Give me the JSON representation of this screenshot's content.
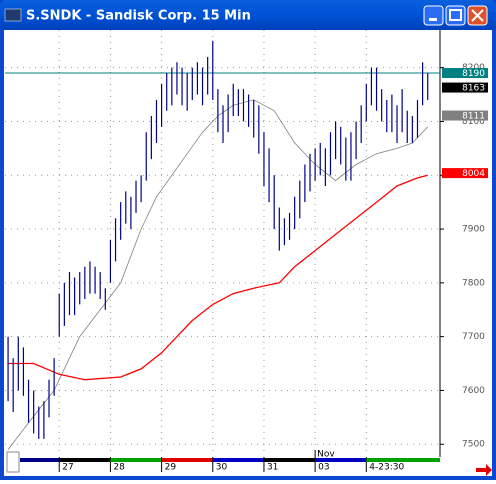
{
  "window": {
    "title": "S.SNDK - Sandisk Corp. 15 Min"
  },
  "chart_data": {
    "type": "hilo",
    "color": "#00008b",
    "x": [
      0,
      1,
      2,
      3,
      4,
      5,
      6,
      7,
      8,
      9,
      10,
      11,
      12,
      13,
      14,
      15,
      16,
      17,
      18,
      19,
      20,
      21,
      22,
      23,
      24,
      25,
      26,
      27,
      28,
      29,
      30,
      31,
      32,
      33,
      34,
      35,
      36,
      37,
      38,
      39,
      40,
      41,
      42,
      43,
      44,
      45,
      46,
      47,
      48,
      49,
      50,
      51,
      52,
      53,
      54,
      55,
      56,
      57,
      58,
      59,
      60,
      61,
      62,
      63,
      64,
      65,
      66,
      67,
      68,
      69,
      70,
      71,
      72,
      73,
      74,
      75,
      76,
      77,
      78,
      79,
      80,
      81,
      82
    ],
    "high": [
      7700,
      7660,
      7700,
      7680,
      7620,
      7600,
      7570,
      7580,
      7620,
      7660,
      7780,
      7800,
      7820,
      7810,
      7820,
      7830,
      7840,
      7830,
      7820,
      7790,
      7880,
      7920,
      7950,
      7970,
      7960,
      7990,
      8000,
      8080,
      8110,
      8140,
      8170,
      8190,
      8200,
      8210,
      8200,
      8190,
      8200,
      8210,
      8200,
      8220,
      8250,
      8160,
      8130,
      8150,
      8170,
      8160,
      8160,
      8150,
      8140,
      8130,
      8080,
      8050,
      8000,
      7940,
      7920,
      7930,
      7960,
      7990,
      8020,
      8040,
      8050,
      8060,
      8050,
      8080,
      8100,
      8090,
      8070,
      8080,
      8100,
      8130,
      8170,
      8200,
      8200,
      8160,
      8140,
      8150,
      8130,
      8160,
      8120,
      8110,
      8140,
      8210,
      8190
    ],
    "low": [
      7580,
      7560,
      7600,
      7590,
      7540,
      7520,
      7510,
      7510,
      7550,
      7590,
      7700,
      7720,
      7740,
      7740,
      7760,
      7770,
      7780,
      7780,
      7770,
      7750,
      7800,
      7840,
      7880,
      7910,
      7900,
      7930,
      7950,
      7990,
      8030,
      8060,
      8090,
      8120,
      8130,
      8150,
      8130,
      8120,
      8140,
      8150,
      8130,
      8150,
      8140,
      8080,
      8060,
      8080,
      8110,
      8110,
      8100,
      8090,
      8070,
      8040,
      7980,
      7950,
      7900,
      7860,
      7870,
      7880,
      7900,
      7920,
      7950,
      7970,
      7990,
      8000,
      7980,
      8000,
      8030,
      8020,
      7990,
      7990,
      8030,
      8060,
      8100,
      8130,
      8120,
      8100,
      8080,
      8080,
      8060,
      8080,
      8060,
      8060,
      8070,
      8130,
      8140
    ],
    "lines": [
      {
        "color": "#808080",
        "x": [
          0,
          4,
          9,
          14,
          18,
          22,
          26,
          29,
          32,
          35,
          38,
          41,
          44,
          48,
          52,
          56,
          60,
          64,
          68,
          72,
          76,
          79,
          82
        ],
        "values": [
          7490,
          7540,
          7600,
          7700,
          7750,
          7800,
          7900,
          7960,
          8000,
          8040,
          8080,
          8110,
          8130,
          8140,
          8120,
          8060,
          8020,
          7990,
          8020,
          8040,
          8050,
          8060,
          8090
        ]
      },
      {
        "color": "#ff0000",
        "x": [
          0,
          5,
          10,
          15,
          22,
          26,
          30,
          33,
          36,
          40,
          44,
          48,
          53,
          56,
          60,
          64,
          68,
          72,
          76,
          80,
          82
        ],
        "values": [
          7650,
          7650,
          7630,
          7620,
          7625,
          7640,
          7670,
          7700,
          7730,
          7760,
          7780,
          7790,
          7800,
          7830,
          7860,
          7890,
          7920,
          7950,
          7980,
          7995,
          8000
        ]
      }
    ],
    "hline": {
      "value": 8190,
      "color": "#008080"
    },
    "price_markers": [
      {
        "value": 8190,
        "color": "#008080"
      },
      {
        "value": 8163,
        "color": "#000000"
      },
      {
        "value": 8111,
        "color": "#808080"
      },
      {
        "value": 8004,
        "color": "#ff0000"
      }
    ],
    "xlim": [
      -0.6,
      84.4
    ],
    "xticks": [
      {
        "value": 10,
        "label": "27"
      },
      {
        "value": 20,
        "label": "28"
      },
      {
        "value": 30,
        "label": "29"
      },
      {
        "value": 40,
        "label": "30"
      },
      {
        "value": 50,
        "label": "31"
      },
      {
        "value": 60,
        "label": "03"
      },
      {
        "value": 70,
        "label": "4-23:30"
      }
    ],
    "x_annotation": {
      "value": 60,
      "label": "Nov"
    },
    "ylim": [
      7480,
      8270
    ],
    "yticks": [
      7500,
      7600,
      7700,
      7800,
      7900,
      8000,
      8100,
      8200
    ],
    "grid": true
  }
}
